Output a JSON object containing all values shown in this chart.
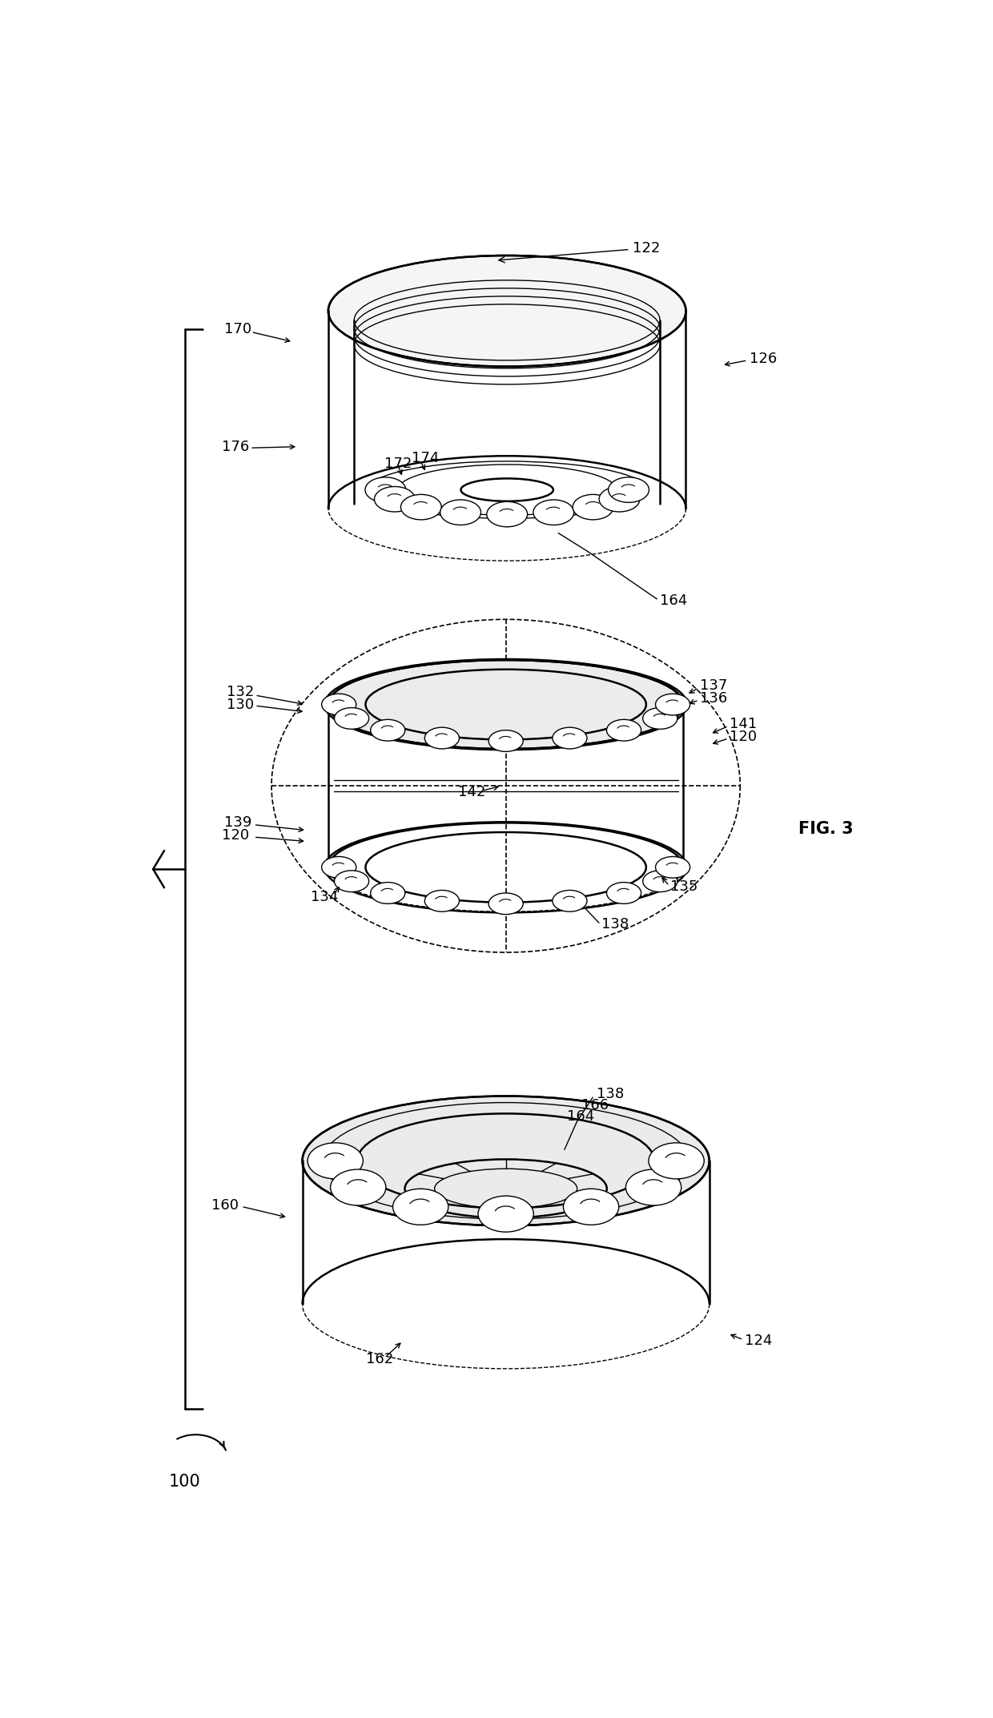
{
  "bg_color": "#ffffff",
  "fig_label": "FIG. 3",
  "labels": {
    "assembly": "100",
    "t_170": "170",
    "t_122": "122",
    "t_126": "126",
    "t_176": "176",
    "t_172": "172",
    "t_174": "174",
    "t_164": "164",
    "m_130": "130",
    "m_132": "132",
    "m_136": "136",
    "m_137": "137",
    "m_141": "141",
    "m_120r": "120",
    "m_134": "134",
    "m_135": "135",
    "m_138": "138",
    "m_142": "142",
    "m_139": "139",
    "m_120l": "120",
    "b_160": "160",
    "b_124": "124",
    "b_162": "162",
    "b_164": "164",
    "b_166": "166",
    "b_138": "138"
  },
  "lw": 1.8,
  "lw_t": 1.0,
  "lw_d": 1.2,
  "fs": 13,
  "fs_fig": 15
}
